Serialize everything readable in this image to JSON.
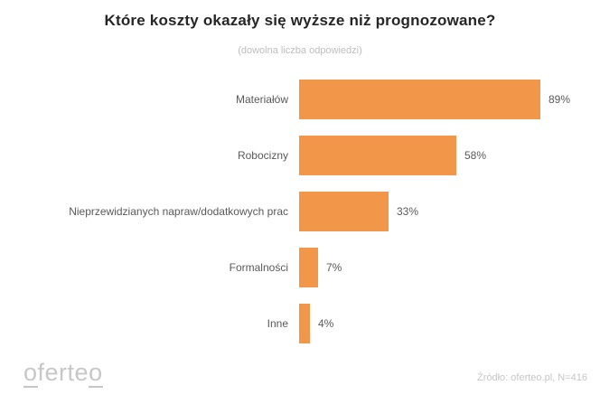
{
  "header": {
    "title": "Które koszty okazały się wyższe niż prognozowane?",
    "subtitle": "(dowolna liczba odpowiedzi)"
  },
  "chart_data": {
    "type": "bar",
    "orientation": "horizontal",
    "title": "Które koszty okazały się wyższe niż prognozowane?",
    "subtitle": "(dowolna liczba odpowiedzi)",
    "categories": [
      "Materiałów",
      "Robocizny",
      "Nieprzewidzianych napraw/dodatkowych prac",
      "Formalności",
      "Inne"
    ],
    "values": [
      89,
      58,
      33,
      7,
      4
    ],
    "value_suffix": "%",
    "xlim": [
      0,
      100
    ],
    "grid": false,
    "legend": false,
    "bar_color": "#F2964A",
    "label_color": "#595959"
  },
  "footer": {
    "logo_first": "o",
    "logo_middle": "ferte",
    "logo_last": "o",
    "source": "Źródło: oferteo.pl, N=416"
  }
}
